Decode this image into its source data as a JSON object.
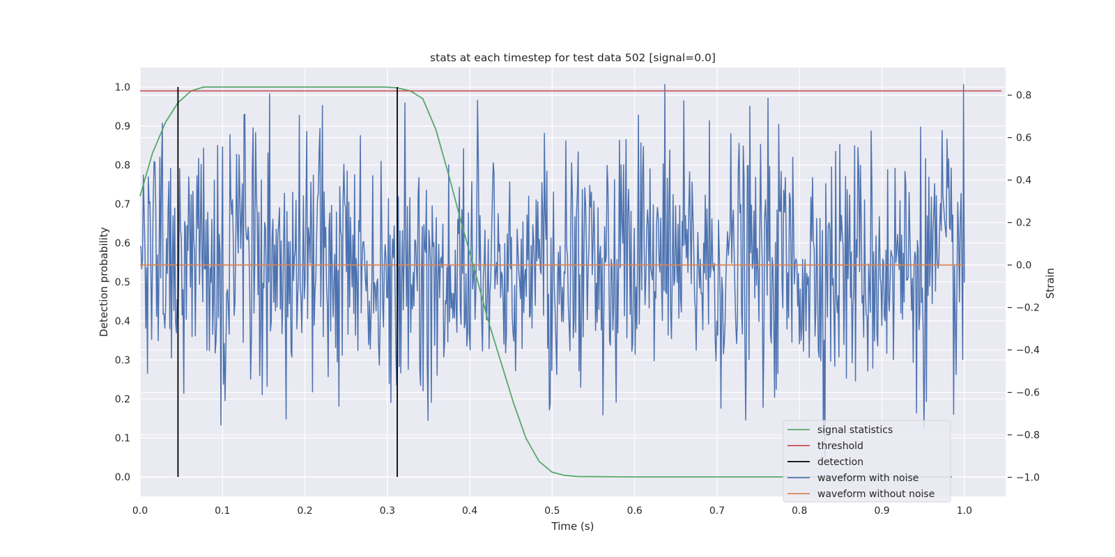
{
  "chart_data": {
    "type": "line",
    "title": "stats at each timestep for test data 502 [signal=0.0]",
    "xlabel": "Time (s)",
    "ylabel": "Detection probability",
    "ylabel_right": "Strain",
    "xlim": [
      0.0,
      1.05
    ],
    "ylim": [
      -0.05,
      1.05
    ],
    "ylim_right": [
      -1.09,
      0.93
    ],
    "x_ticks": [
      "0.0",
      "0.1",
      "0.2",
      "0.3",
      "0.4",
      "0.5",
      "0.6",
      "0.7",
      "0.8",
      "0.9",
      "1.0"
    ],
    "y_ticks": [
      "0.0",
      "0.1",
      "0.2",
      "0.3",
      "0.4",
      "0.5",
      "0.6",
      "0.7",
      "0.8",
      "0.9",
      "1.0"
    ],
    "y_right_ticks": [
      "−1.0",
      "−0.8",
      "−0.6",
      "−0.4",
      "−0.2",
      "0.0",
      "0.2",
      "0.4",
      "0.6",
      "0.8"
    ],
    "grid": true,
    "legend_position": "lower-right",
    "series": [
      {
        "name": "signal statistics",
        "color": "#55a868",
        "axis": "left",
        "x": [
          0.0,
          0.015,
          0.031,
          0.046,
          0.062,
          0.077,
          0.093,
          0.109,
          0.2,
          0.28,
          0.296,
          0.312,
          0.328,
          0.343,
          0.359,
          0.375,
          0.39,
          0.406,
          0.421,
          0.437,
          0.453,
          0.468,
          0.484,
          0.5,
          0.515,
          0.531,
          0.6,
          0.7,
          0.8,
          0.9,
          0.985
        ],
        "y": [
          0.72,
          0.83,
          0.91,
          0.96,
          0.99,
          1.0,
          1.0,
          1.0,
          1.0,
          1.0,
          1.0,
          0.998,
          0.99,
          0.97,
          0.89,
          0.77,
          0.65,
          0.53,
          0.41,
          0.3,
          0.19,
          0.1,
          0.04,
          0.012,
          0.004,
          0.001,
          0.0,
          0.0,
          0.0,
          0.0,
          0.0
        ]
      },
      {
        "name": "threshold",
        "color": "#c44e52",
        "axis": "left",
        "x": [
          0.0,
          1.045
        ],
        "y": [
          0.99,
          0.99
        ]
      },
      {
        "name": "detection",
        "color": "#000000",
        "axis": "left",
        "segments": [
          {
            "x": 0.046,
            "y0": 0.0,
            "y1": 1.0
          },
          {
            "x": 0.312,
            "y0": 0.0,
            "y1": 1.0
          }
        ]
      },
      {
        "name": "waveform with noise",
        "color": "#4c72b0",
        "axis": "right",
        "x_range": [
          0.0,
          1.0
        ],
        "n_points": 1000,
        "min": -1.0,
        "max": 0.85,
        "mean": 0.0,
        "std": 0.3
      },
      {
        "name": "waveform without noise",
        "color": "#dd8452",
        "axis": "right",
        "x": [
          0.0,
          1.0
        ],
        "y": [
          0.0,
          0.0
        ]
      }
    ]
  }
}
